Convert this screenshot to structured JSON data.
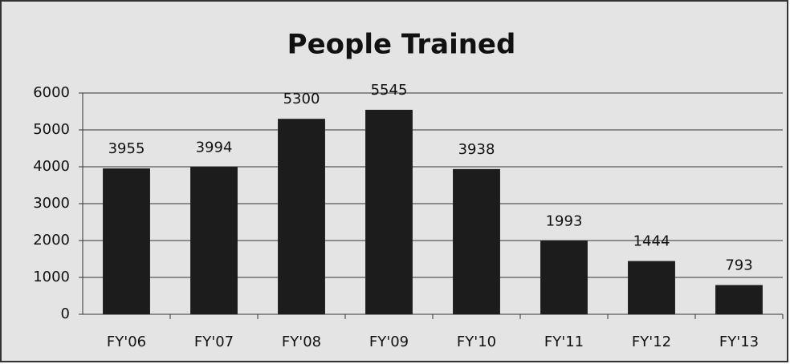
{
  "chart_data": {
    "type": "bar",
    "title": "People Trained",
    "categories": [
      "FY'06",
      "FY'07",
      "FY'08",
      "FY'09",
      "FY'10",
      "FY'11",
      "FY'12",
      "FY'13"
    ],
    "values": [
      3955,
      3994,
      5300,
      5545,
      3938,
      1993,
      1444,
      793
    ],
    "color": "#1c1c1c",
    "ylim": [
      0,
      6000
    ],
    "yticks": [
      0,
      1000,
      2000,
      3000,
      4000,
      5000,
      6000
    ],
    "grid": true
  }
}
